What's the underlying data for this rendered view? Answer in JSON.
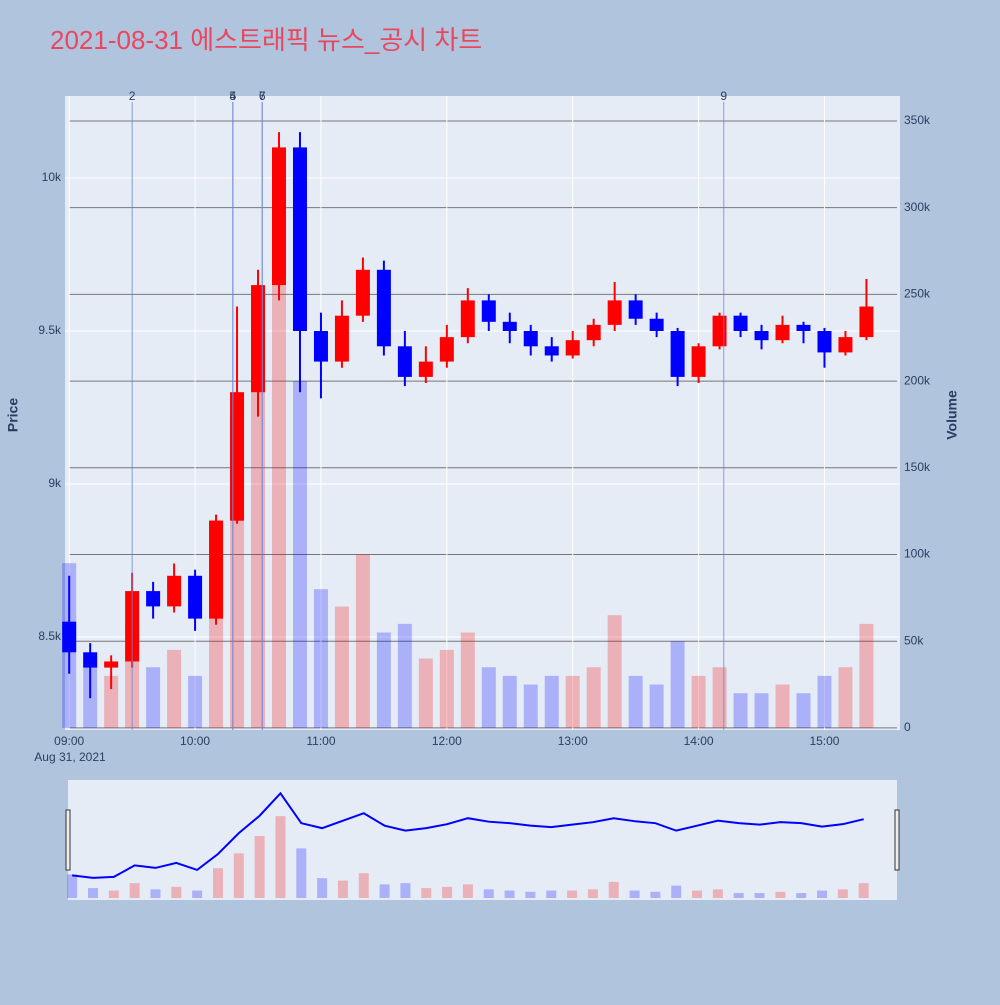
{
  "chart_data": {
    "type": "candlestick",
    "title": "2021-08-31 에스트래픽 뉴스_공시 차트",
    "y_title": "Price",
    "y2_title": "Volume",
    "x_date_label": "Aug 31, 2021",
    "x": [
      "2021-08-31 09:00",
      "2021-08-31 09:10",
      "2021-08-31 09:20",
      "2021-08-31 09:30",
      "2021-08-31 09:40",
      "2021-08-31 09:50",
      "2021-08-31 10:00",
      "2021-08-31 10:10",
      "2021-08-31 10:20",
      "2021-08-31 10:30",
      "2021-08-31 10:40",
      "2021-08-31 10:50",
      "2021-08-31 11:00",
      "2021-08-31 11:10",
      "2021-08-31 11:20",
      "2021-08-31 11:30",
      "2021-08-31 11:40",
      "2021-08-31 11:50",
      "2021-08-31 12:00",
      "2021-08-31 12:10",
      "2021-08-31 12:20",
      "2021-08-31 12:30",
      "2021-08-31 12:40",
      "2021-08-31 12:50",
      "2021-08-31 13:00",
      "2021-08-31 13:10",
      "2021-08-31 13:20",
      "2021-08-31 13:30",
      "2021-08-31 13:40",
      "2021-08-31 13:50",
      "2021-08-31 14:00",
      "2021-08-31 14:10",
      "2021-08-31 14:20",
      "2021-08-31 14:30",
      "2021-08-31 14:40",
      "2021-08-31 14:50",
      "2021-08-31 15:00",
      "2021-08-31 15:10",
      "2021-08-31 15:20"
    ],
    "open": [
      8550,
      8450,
      8400,
      8420,
      8650,
      8600,
      8700,
      8560,
      8880,
      9300,
      9650,
      10100,
      9500,
      9400,
      9550,
      9700,
      9450,
      9350,
      9400,
      9480,
      9600,
      9530,
      9500,
      9450,
      9420,
      9470,
      9520,
      9600,
      9540,
      9500,
      9350,
      9450,
      9550,
      9500,
      9470,
      9520,
      9500,
      9430,
      9480
    ],
    "high": [
      8700,
      8480,
      8440,
      8710,
      8680,
      8740,
      8720,
      8900,
      9580,
      9700,
      10150,
      10150,
      9560,
      9600,
      9740,
      9730,
      9500,
      9450,
      9520,
      9640,
      9620,
      9560,
      9520,
      9480,
      9500,
      9540,
      9660,
      9620,
      9560,
      9510,
      9460,
      9560,
      9560,
      9520,
      9550,
      9530,
      9510,
      9500,
      9670
    ],
    "low": [
      8380,
      8300,
      8330,
      8400,
      8560,
      8580,
      8520,
      8540,
      8870,
      9220,
      9600,
      9300,
      9280,
      9380,
      9530,
      9420,
      9320,
      9330,
      9380,
      9460,
      9500,
      9460,
      9420,
      9400,
      9410,
      9450,
      9500,
      9520,
      9480,
      9320,
      9330,
      9440,
      9480,
      9440,
      9460,
      9460,
      9380,
      9420,
      9470
    ],
    "close": [
      8450,
      8400,
      8420,
      8650,
      8600,
      8700,
      8560,
      8880,
      9300,
      9650,
      10100,
      9500,
      9400,
      9550,
      9700,
      9450,
      9350,
      9400,
      9480,
      9600,
      9530,
      9500,
      9450,
      9420,
      9470,
      9520,
      9600,
      9540,
      9500,
      9350,
      9450,
      9550,
      9500,
      9470,
      9520,
      9500,
      9430,
      9480,
      9580
    ],
    "volume": [
      95000,
      40000,
      30000,
      60000,
      35000,
      45000,
      30000,
      120000,
      180000,
      250000,
      330000,
      200000,
      80000,
      70000,
      100000,
      55000,
      60000,
      40000,
      45000,
      55000,
      35000,
      30000,
      25000,
      30000,
      30000,
      35000,
      65000,
      30000,
      25000,
      50000,
      30000,
      35000,
      20000,
      20000,
      25000,
      20000,
      30000,
      35000,
      60000
    ],
    "increasing_color": "#ff0000",
    "decreasing_color": "#0000ff",
    "markers": [
      {
        "label": "2",
        "x": "2021-08-31 09:30"
      },
      {
        "label": "4",
        "x": "2021-08-31 10:18"
      },
      {
        "label": "5",
        "x": "2021-08-31 10:18"
      },
      {
        "label": "6",
        "x": "2021-08-31 10:32"
      },
      {
        "label": "7",
        "x": "2021-08-31 10:32"
      },
      {
        "label": "9",
        "x": "2021-08-31 14:12"
      }
    ],
    "xlim": [
      "2021-08-31 08:58",
      "2021-08-31 15:36"
    ],
    "xticks": [
      {
        "value": "2021-08-31 09:00",
        "label": "09:00"
      },
      {
        "value": "2021-08-31 10:00",
        "label": "10:00"
      },
      {
        "value": "2021-08-31 11:00",
        "label": "11:00"
      },
      {
        "value": "2021-08-31 12:00",
        "label": "12:00"
      },
      {
        "value": "2021-08-31 13:00",
        "label": "13:00"
      },
      {
        "value": "2021-08-31 14:00",
        "label": "14:00"
      },
      {
        "value": "2021-08-31 15:00",
        "label": "15:00"
      }
    ],
    "ylim": [
      8196,
      10268
    ],
    "yticks": [
      {
        "value": 8500,
        "label": "8.5k"
      },
      {
        "value": 9000,
        "label": "9k"
      },
      {
        "value": 9500,
        "label": "9.5k"
      },
      {
        "value": 10000,
        "label": "10k"
      }
    ],
    "y2lim": [
      -1200,
      364400
    ],
    "y2ticks": [
      0,
      {
        "value": 50000,
        "label": "50k"
      },
      {
        "value": 100000,
        "label": "100k"
      },
      {
        "value": 150000,
        "label": "150k"
      },
      {
        "value": 200000,
        "label": "200k"
      },
      {
        "value": 250000,
        "label": "250k"
      },
      {
        "value": 300000,
        "label": "300k"
      },
      {
        "value": 350000,
        "label": "350k"
      }
    ],
    "grid": true,
    "rangeslider": true
  }
}
